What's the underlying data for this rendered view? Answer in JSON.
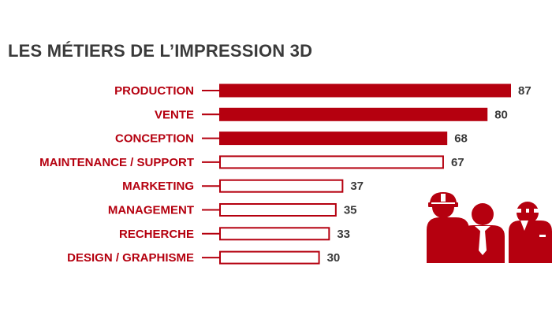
{
  "colors": {
    "accent": "#b5000f",
    "title": "#3a3a3a",
    "background": "#ffffff"
  },
  "chart_data": {
    "type": "bar",
    "orientation": "horizontal",
    "title": "LES MÉTIERS DE L’IMPRESSION 3D",
    "categories": [
      "PRODUCTION",
      "VENTE",
      "CONCEPTION",
      "MAINTENANCE / SUPPORT",
      "MARKETING",
      "MANAGEMENT",
      "RECHERCHE",
      "DESIGN / GRAPHISME"
    ],
    "values": [
      87,
      80,
      68,
      67,
      37,
      35,
      33,
      30
    ],
    "bar_style": [
      "filled",
      "filled",
      "filled",
      "outline",
      "outline",
      "outline",
      "outline",
      "outline"
    ],
    "data_labels": [
      "87",
      "80",
      "68",
      "67",
      "37",
      "35",
      "33",
      "30"
    ],
    "xlim": [
      0,
      87
    ],
    "grid": false,
    "legend": "none"
  },
  "decorations": {
    "icons": [
      "worker-helmet-icon",
      "businessman-tie-icon",
      "engineer-goggles-icon"
    ]
  }
}
